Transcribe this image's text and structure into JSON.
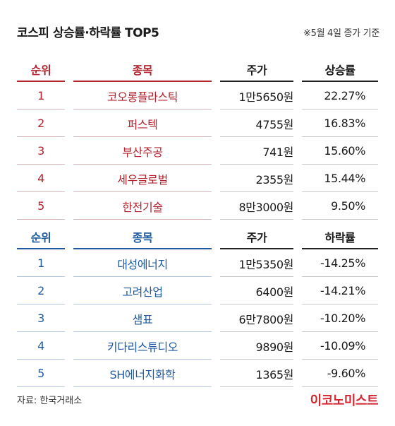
{
  "title": "코스피 상승률·하락률 TOP5",
  "basis": "※5월 4일 종가 기준",
  "rise": {
    "headers": {
      "rank": "순위",
      "name": "종목",
      "price": "주가",
      "rate": "상승률"
    },
    "rows": [
      {
        "rank": "1",
        "name": "코오롱플라스틱",
        "price": "1만5650원",
        "rate": "22.27%"
      },
      {
        "rank": "2",
        "name": "퍼스텍",
        "price": "4755원",
        "rate": "16.83%"
      },
      {
        "rank": "3",
        "name": "부산주공",
        "price": "741원",
        "rate": "15.60%"
      },
      {
        "rank": "4",
        "name": "세우글로벌",
        "price": "2355원",
        "rate": "15.44%"
      },
      {
        "rank": "5",
        "name": "한전기술",
        "price": "8만3000원",
        "rate": "9.50%"
      }
    ]
  },
  "fall": {
    "headers": {
      "rank": "순위",
      "name": "종목",
      "price": "주가",
      "rate": "하락률"
    },
    "rows": [
      {
        "rank": "1",
        "name": "대성에너지",
        "price": "1만5350원",
        "rate": "-14.25%"
      },
      {
        "rank": "2",
        "name": "고려산업",
        "price": "6400원",
        "rate": "-14.21%"
      },
      {
        "rank": "3",
        "name": "샘표",
        "price": "6만7800원",
        "rate": "-10.20%"
      },
      {
        "rank": "4",
        "name": "키다리스튜디오",
        "price": "9890원",
        "rate": "-10.09%"
      },
      {
        "rank": "5",
        "name": "SH에너지화학",
        "price": "1365원",
        "rate": "-9.60%"
      }
    ]
  },
  "source": "자료: 한국거래소",
  "logo": "이코노미스트",
  "colors": {
    "rise_accent": "#b2232e",
    "fall_accent": "#1f5aa0",
    "logo": "#d22630"
  }
}
